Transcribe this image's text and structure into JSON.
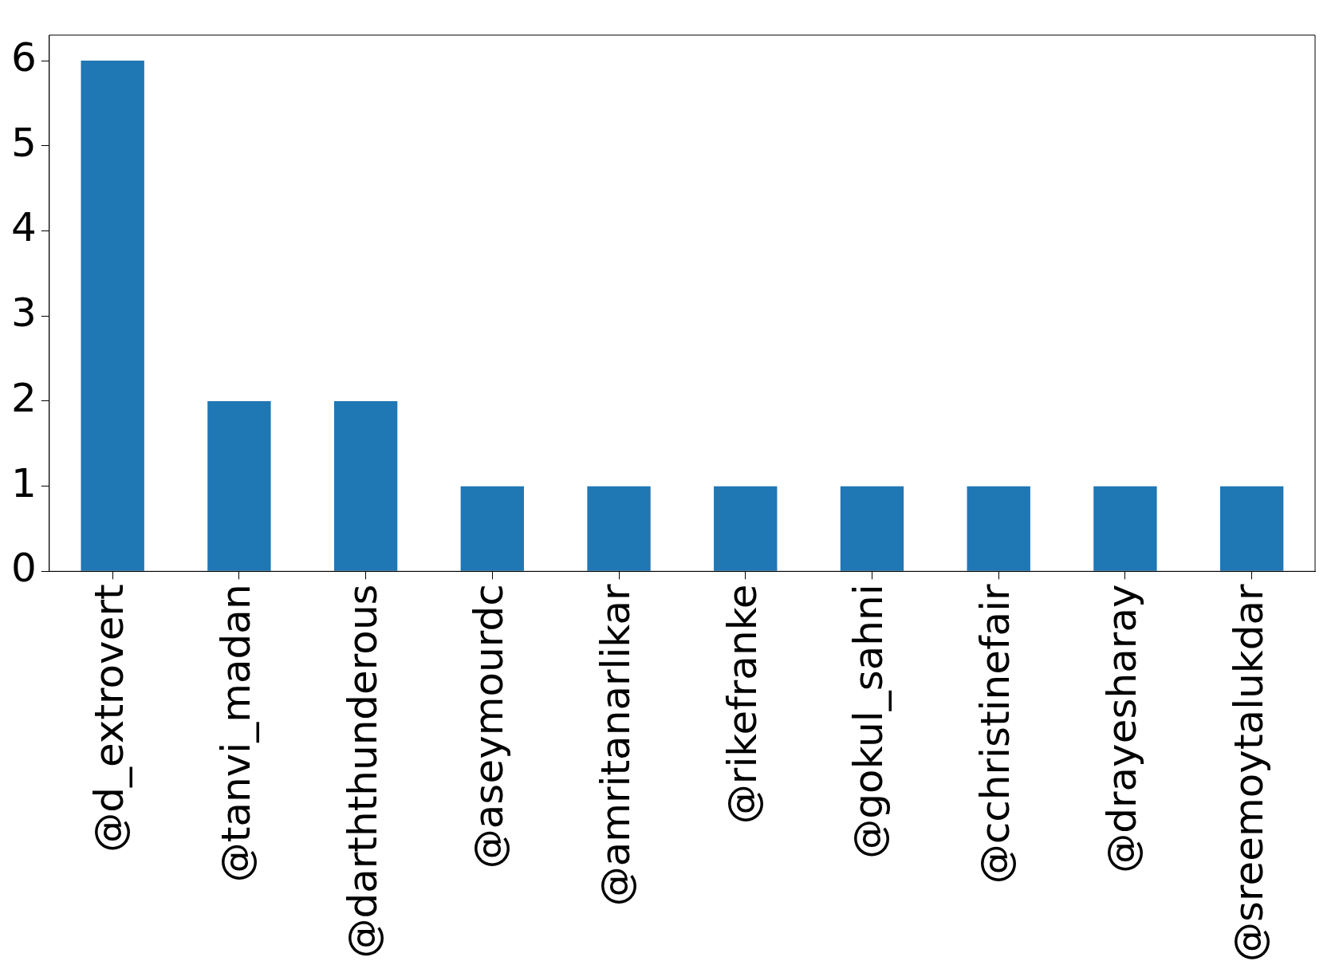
{
  "chart_data": {
    "type": "bar",
    "categories": [
      "@d_extrovert",
      "@tanvi_madan",
      "@darththunderous",
      "@aseymourdc",
      "@amritanarlikar",
      "@rikefranke",
      "@gokul_sahni",
      "@cchristinefair",
      "@drayesharay",
      "@sreemoytalukdar"
    ],
    "values": [
      6,
      2,
      2,
      1,
      1,
      1,
      1,
      1,
      1,
      1
    ],
    "color": "#1f77b4",
    "ylim": [
      0,
      6.3
    ],
    "yticks": [
      0,
      1,
      2,
      3,
      4,
      5,
      6
    ],
    "grid": false,
    "legend": false
  }
}
